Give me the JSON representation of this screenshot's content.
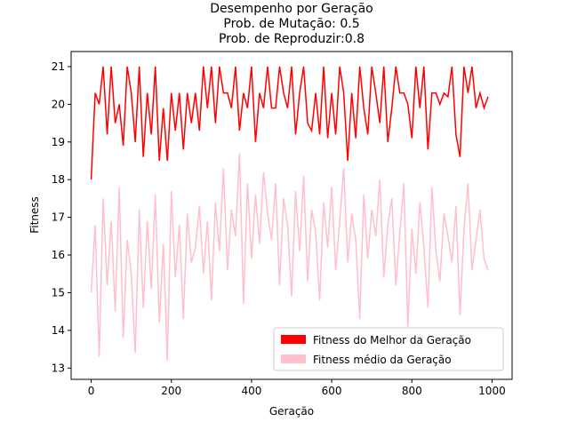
{
  "chart_data": {
    "type": "line",
    "title": [
      "Desempenho por Geração",
      "Prob. de Mutação: 0.5",
      "Prob. de Reproduzir:0.8"
    ],
    "xlabel": "Geração",
    "ylabel": "Fitness",
    "xlim": [
      -50,
      1050
    ],
    "ylim": [
      12.7,
      21.4
    ],
    "xticks": [
      0,
      200,
      400,
      600,
      800,
      1000
    ],
    "yticks": [
      13,
      14,
      15,
      16,
      17,
      18,
      19,
      20,
      21
    ],
    "legend": "lower right",
    "x": [
      0,
      10,
      20,
      30,
      40,
      50,
      60,
      70,
      80,
      90,
      100,
      110,
      120,
      130,
      140,
      150,
      160,
      170,
      180,
      190,
      200,
      210,
      220,
      230,
      240,
      250,
      260,
      270,
      280,
      290,
      300,
      310,
      320,
      330,
      340,
      350,
      360,
      370,
      380,
      390,
      400,
      410,
      420,
      430,
      440,
      450,
      460,
      470,
      480,
      490,
      500,
      510,
      520,
      530,
      540,
      550,
      560,
      570,
      580,
      590,
      600,
      610,
      620,
      630,
      640,
      650,
      660,
      670,
      680,
      690,
      700,
      710,
      720,
      730,
      740,
      750,
      760,
      770,
      780,
      790,
      800,
      810,
      820,
      830,
      840,
      850,
      860,
      870,
      880,
      890,
      900,
      910,
      920,
      930,
      940,
      950,
      960,
      970,
      980,
      990
    ],
    "series": [
      {
        "name": "Fitness do Melhor da Geração",
        "color": "#ff0000",
        "values": [
          18,
          20.3,
          20,
          21,
          19.2,
          21,
          19.5,
          20,
          18.9,
          21,
          20.3,
          19,
          21,
          18.6,
          20.3,
          19.2,
          21,
          18.5,
          19.9,
          18.5,
          20.3,
          19.3,
          20.3,
          18.8,
          20.3,
          19.5,
          20.3,
          19.3,
          21,
          19.9,
          21,
          19.5,
          21,
          20.3,
          20.3,
          19.9,
          21,
          19.3,
          20.3,
          19.9,
          21,
          19,
          20.3,
          19.9,
          21,
          19.9,
          19.9,
          21,
          20.3,
          19.9,
          21,
          19.2,
          20.3,
          21,
          19.5,
          19.3,
          20.3,
          19.2,
          21,
          19.1,
          20.3,
          19.2,
          21,
          20.3,
          18.5,
          20.3,
          19.1,
          21,
          19.9,
          19.2,
          21,
          20.3,
          19.5,
          21,
          19,
          19.9,
          21,
          20.3,
          20.3,
          20,
          19.1,
          21,
          19.9,
          21,
          18.8,
          20.3,
          20.3,
          20,
          20.3,
          20.2,
          21,
          19.2,
          18.6,
          21,
          20.3,
          21,
          19.9,
          20.3,
          19.9,
          20.2
        ]
      },
      {
        "name": "Fitness médio da Geração",
        "color": "#ffc0cb",
        "values": [
          15,
          16.8,
          13.3,
          17.5,
          15.2,
          16.9,
          14.5,
          17.8,
          13.8,
          16.4,
          15.5,
          13.4,
          17.2,
          14.6,
          16.9,
          15.1,
          17.6,
          14.2,
          16.3,
          13.2,
          17.7,
          15.4,
          16.8,
          14.3,
          17.1,
          15.8,
          16.2,
          17.3,
          15.5,
          16.9,
          14.8,
          17.4,
          16.1,
          18.3,
          15.6,
          17.2,
          16.5,
          18.7,
          14.7,
          17.9,
          15.9,
          17.6,
          16.3,
          18.2,
          17.1,
          16.4,
          17.9,
          15.2,
          17.5,
          16.8,
          14.9,
          17.7,
          16.1,
          18.1,
          15.3,
          17.2,
          16.6,
          14.8,
          17.4,
          16.2,
          17.8,
          15.6,
          16.9,
          18.3,
          15.8,
          17.1,
          16.4,
          14.3,
          17.6,
          15.9,
          17.2,
          16.5,
          18,
          15.4,
          16.8,
          17.5,
          15.2,
          16.6,
          17.9,
          14.1,
          16.7,
          15.5,
          17.4,
          16.2,
          14.6,
          17.8,
          16.1,
          15.3,
          17.1,
          16.5,
          15.8,
          17.3,
          14.4,
          16.7,
          17.9,
          15.6,
          16.4,
          17.2,
          15.9,
          15.6
        ]
      }
    ]
  }
}
